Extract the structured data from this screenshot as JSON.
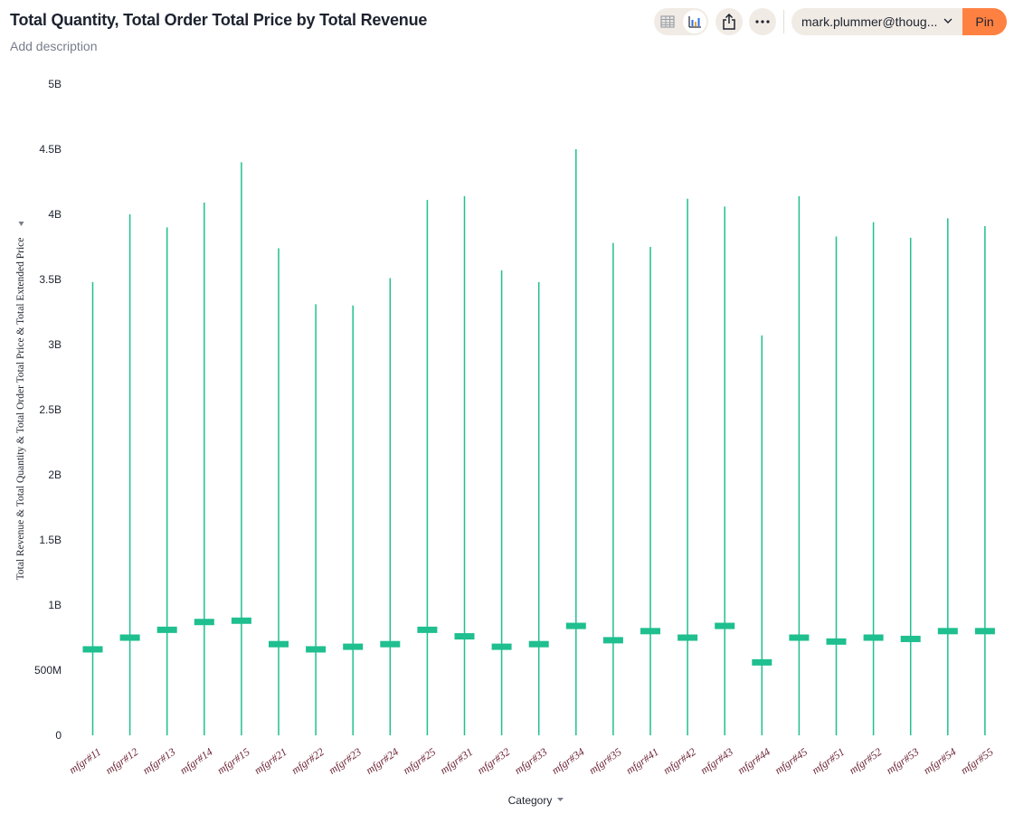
{
  "header": {
    "title": "Total Quantity, Total Order Total Price by Total Revenue",
    "description": "Add description"
  },
  "toolbar": {
    "table_view_icon": "table-icon",
    "chart_view_icon": "chart-icon",
    "share_icon": "share-icon",
    "more_icon": "more-icon",
    "user": "mark.plummer@thoug...",
    "pin_label": "Pin"
  },
  "colors": {
    "accent": "#1fbf8f",
    "tick_label": "#6b2232",
    "pin": "#ff8142",
    "control_bg": "#f1ebe5"
  },
  "chart_data": {
    "type": "range",
    "title": "Total Quantity, Total Order Total Price by Total Revenue",
    "xlabel": "Category",
    "ylabel": "Total Revenue & Total Quantity & Total Order Total Price & Total Extended Price",
    "ylim": [
      0,
      5000000000
    ],
    "y_ticks": [
      {
        "value": 0,
        "label": "0"
      },
      {
        "value": 500000000,
        "label": "500M"
      },
      {
        "value": 1000000000,
        "label": "1B"
      },
      {
        "value": 1500000000,
        "label": "1.5B"
      },
      {
        "value": 2000000000,
        "label": "2B"
      },
      {
        "value": 2500000000,
        "label": "2.5B"
      },
      {
        "value": 3000000000,
        "label": "3B"
      },
      {
        "value": 3500000000,
        "label": "3.5B"
      },
      {
        "value": 4000000000,
        "label": "4B"
      },
      {
        "value": 4500000000,
        "label": "4.5B"
      },
      {
        "value": 5000000000,
        "label": "5B"
      }
    ],
    "categories": [
      "mfgr#11",
      "mfgr#12",
      "mfgr#13",
      "mfgr#14",
      "mfgr#15",
      "mfgr#21",
      "mfgr#22",
      "mfgr#23",
      "mfgr#24",
      "mfgr#25",
      "mfgr#31",
      "mfgr#32",
      "mfgr#33",
      "mfgr#34",
      "mfgr#35",
      "mfgr#41",
      "mfgr#42",
      "mfgr#43",
      "mfgr#44",
      "mfgr#45",
      "mfgr#51",
      "mfgr#52",
      "mfgr#53",
      "mfgr#54",
      "mfgr#55"
    ],
    "series": [
      {
        "values": [
          3480000000,
          4000000000,
          3900000000,
          4090000000,
          4400000000,
          3740000000,
          3310000000,
          3300000000,
          3510000000,
          4110000000,
          4140000000,
          3570000000,
          3480000000,
          4500000000,
          3780000000,
          3750000000,
          4120000000,
          4060000000,
          3070000000,
          4140000000,
          3830000000,
          3940000000,
          3820000000,
          3970000000,
          3910000000
        ]
      },
      {
        "values": [
          660000000,
          750000000,
          810000000,
          870000000,
          880000000,
          700000000,
          660000000,
          680000000,
          700000000,
          810000000,
          760000000,
          680000000,
          700000000,
          840000000,
          730000000,
          800000000,
          750000000,
          840000000,
          560000000,
          750000000,
          720000000,
          750000000,
          740000000,
          800000000,
          800000000
        ]
      },
      {
        "values": [
          0,
          0,
          0,
          0,
          0,
          0,
          0,
          0,
          0,
          0,
          0,
          0,
          0,
          0,
          0,
          0,
          0,
          0,
          0,
          0,
          0,
          0,
          0,
          0,
          0
        ]
      }
    ]
  }
}
